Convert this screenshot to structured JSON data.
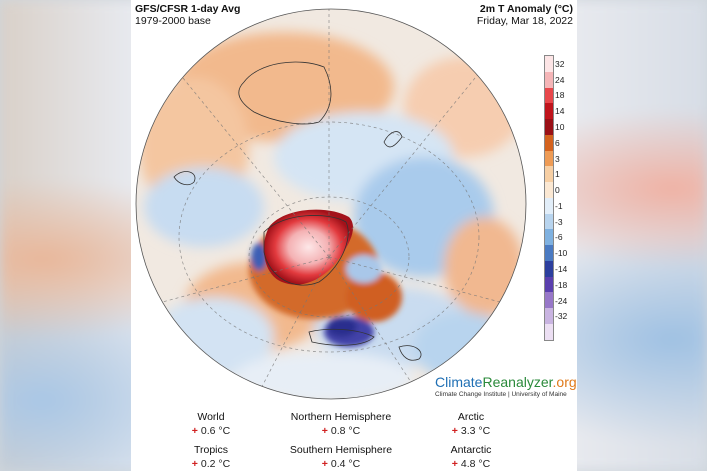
{
  "header": {
    "title": "GFS/CFSR 1-day Avg",
    "baseline": "1979-2000 base",
    "variable": "2m T Anomaly (°C)",
    "date": "Friday, Mar 18, 2022"
  },
  "colorbar": {
    "labels": [
      "32",
      "24",
      "18",
      "14",
      "10",
      "6",
      "3",
      "1",
      "0",
      "-1",
      "-3",
      "-6",
      "-10",
      "-14",
      "-18",
      "-24",
      "-32"
    ],
    "colors": [
      "#fde5e6",
      "#f5b5b7",
      "#e8474b",
      "#c0141c",
      "#9a1016",
      "#d4621e",
      "#ee9b55",
      "#f7cfa4",
      "#fbe8d3",
      "#e2eef9",
      "#b8d4ee",
      "#7fb1e0",
      "#4a7ac2",
      "#2c3f9e",
      "#5a3fae",
      "#9777c8",
      "#c9b4e1",
      "#ecdff3"
    ]
  },
  "brand": {
    "part1": "Climate",
    "part2": "Reanalyzer",
    "part3": ".org",
    "subtitle": "Climate Change Institute | University of Maine"
  },
  "stats": {
    "world_label": "World",
    "world_value": "0.6 °C",
    "nh_label": "Northern Hemisphere",
    "nh_value": "0.8 °C",
    "arctic_label": "Arctic",
    "arctic_value": "3.3 °C",
    "tropics_label": "Tropics",
    "tropics_value": "0.2 °C",
    "sh_label": "Southern Hemisphere",
    "sh_value": "0.4 °C",
    "antarctic_label": "Antarctic",
    "antarctic_value": "4.8 °C",
    "sign": "+"
  }
}
